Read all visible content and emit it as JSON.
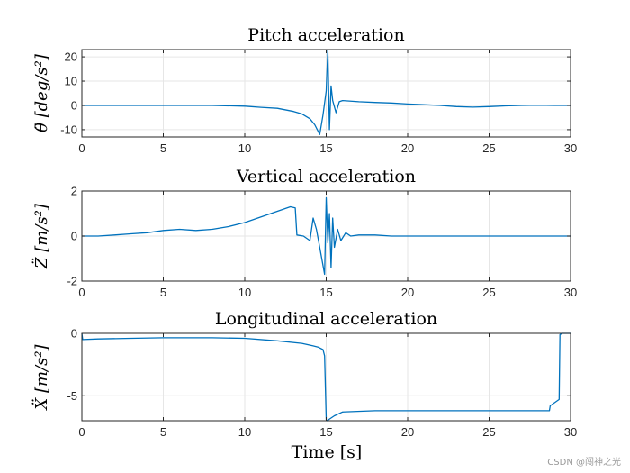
{
  "figure": {
    "xlabel": "Time [s]",
    "watermark": "CSDN @闯神之光",
    "line_color": "#0072bd",
    "grid_color": "#e6e6e6",
    "axes_color": "#262626"
  },
  "chart_data": [
    {
      "type": "line",
      "title": "Pitch acceleration",
      "ylabel": "θ̈ [deg/s²]",
      "xlim": [
        0,
        30
      ],
      "ylim": [
        -13,
        23
      ],
      "xticks": [
        0,
        5,
        10,
        15,
        20,
        25,
        30
      ],
      "yticks": [
        -10,
        0,
        10,
        20
      ],
      "grid": true,
      "series": [
        {
          "x": [
            0,
            2,
            5,
            8,
            10,
            11,
            12,
            13,
            13.5,
            14,
            14.3,
            14.6,
            14.8,
            15.0,
            15.1,
            15.2,
            15.3,
            15.4,
            15.6,
            15.8,
            16.0,
            17,
            18,
            19,
            20,
            21,
            22,
            23,
            24,
            25,
            26,
            27,
            28,
            29,
            30
          ],
          "y": [
            0,
            0,
            0,
            0,
            -0.3,
            -0.8,
            -1.2,
            -2.5,
            -3.5,
            -5.5,
            -8,
            -12,
            -4,
            6,
            23,
            -10,
            8,
            2,
            -3,
            1.5,
            2,
            1.5,
            1.2,
            1,
            0.6,
            0.3,
            0,
            -0.5,
            -0.7,
            -0.5,
            -0.2,
            0,
            0.1,
            0,
            0
          ]
        }
      ]
    },
    {
      "type": "line",
      "title": "Vertical acceleration",
      "ylabel": "Z̈ [m/s²]",
      "xlim": [
        0,
        30
      ],
      "ylim": [
        -2,
        2
      ],
      "xticks": [
        0,
        5,
        10,
        15,
        20,
        25,
        30
      ],
      "yticks": [
        -2,
        0,
        2
      ],
      "grid": true,
      "series": [
        {
          "x": [
            0,
            1,
            2,
            3,
            4,
            5,
            6,
            7,
            8,
            9,
            10,
            11,
            12,
            12.8,
            13.1,
            13.2,
            13.6,
            14.0,
            14.2,
            14.4,
            14.6,
            14.8,
            14.9,
            15.0,
            15.1,
            15.2,
            15.3,
            15.4,
            15.5,
            15.7,
            15.9,
            16.2,
            16.5,
            17,
            18,
            19,
            20,
            22,
            24,
            26,
            28,
            30
          ],
          "y": [
            0,
            0,
            0.05,
            0.1,
            0.15,
            0.25,
            0.3,
            0.25,
            0.3,
            0.42,
            0.6,
            0.85,
            1.1,
            1.3,
            1.25,
            0.05,
            0,
            -0.2,
            0.8,
            0.3,
            -0.5,
            -1.3,
            -1.7,
            1.7,
            -0.3,
            1.0,
            -1.4,
            0.8,
            -0.5,
            0.3,
            -0.2,
            0.15,
            0,
            0.05,
            0.05,
            0,
            0,
            0,
            0,
            0,
            0,
            0
          ]
        }
      ]
    },
    {
      "type": "line",
      "title": "Longitudinal acceleration",
      "ylabel": "Ẍ [m/s²]",
      "xlim": [
        0,
        30
      ],
      "ylim": [
        -7,
        0
      ],
      "xticks": [
        0,
        5,
        10,
        15,
        20,
        25,
        30
      ],
      "yticks": [
        -5,
        0
      ],
      "grid": true,
      "series": [
        {
          "x": [
            0,
            0.05,
            1,
            3,
            5,
            8,
            10,
            12,
            13.5,
            14.2,
            14.5,
            14.8,
            14.9,
            15.0,
            15.05,
            15.5,
            16,
            18,
            20,
            22,
            24,
            26,
            28,
            28.7,
            28.75,
            29.3,
            29.35,
            29.5,
            29.9,
            30
          ],
          "y": [
            0,
            -0.5,
            -0.45,
            -0.4,
            -0.35,
            -0.35,
            -0.4,
            -0.6,
            -0.8,
            -1.0,
            -1.1,
            -1.3,
            -1.8,
            -6.9,
            -7.0,
            -6.6,
            -6.3,
            -6.2,
            -6.2,
            -6.2,
            -6.2,
            -6.2,
            -6.2,
            -6.2,
            -5.8,
            -5.3,
            -0.1,
            0,
            0,
            0
          ]
        }
      ]
    }
  ]
}
